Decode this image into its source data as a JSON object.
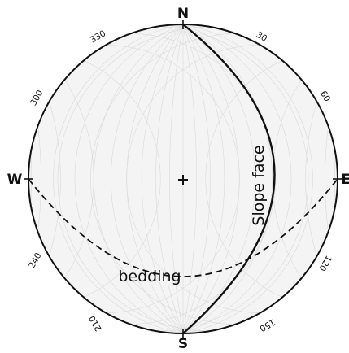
{
  "diagram": {
    "cardinals": {
      "north": "N",
      "south": "S",
      "west": "W",
      "east": "E"
    },
    "azimuth_labels": [
      "30",
      "60",
      "120",
      "150",
      "210",
      "240",
      "300",
      "330"
    ],
    "planes": {
      "slope_face": {
        "label": "Slope face",
        "line_style": "solid",
        "color": "#000000"
      },
      "bedding": {
        "label": "bedding",
        "line_style": "dashed",
        "color": "#000000"
      }
    },
    "grid_color": "#d9d9d9",
    "net_background": "#f4f4f4"
  }
}
